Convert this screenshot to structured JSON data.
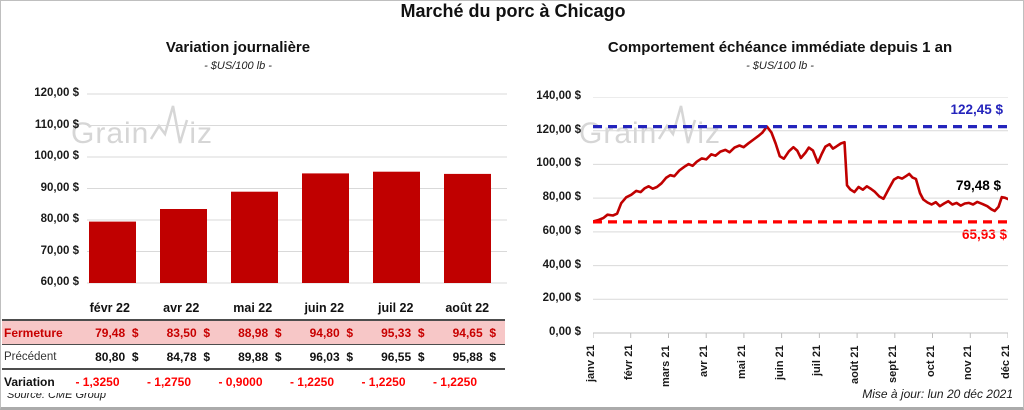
{
  "page": {
    "title": "Marché du porc à Chicago",
    "source_note": "Source: CME Group",
    "updated_note": "Mise à jour: lun 20 déc 2021",
    "watermark": {
      "part1": "Grain",
      "part2": "iz"
    }
  },
  "colors": {
    "bar": "#c00000",
    "line": "#c00000",
    "ref_high": "#2424bc",
    "ref_low": "#ff0000",
    "grid": "#d9d9d9",
    "axis": "#bfbfbf",
    "highlight_row_bg": "#f7c7c7"
  },
  "chart_data": [
    {
      "type": "bar",
      "title": "Variation  journalière",
      "subtitle": "- $US/100 lb -",
      "categories": [
        "févr 22",
        "avr 22",
        "mai 22",
        "juin 22",
        "juil 22",
        "août 22"
      ],
      "values": [
        79.48,
        83.5,
        88.98,
        94.8,
        95.33,
        94.65
      ],
      "ylim": [
        60,
        120
      ],
      "ytick_step": 10,
      "ytick_labels": [
        "60,00 $",
        "70,00 $",
        "80,00 $",
        "90,00 $",
        "100,00 $",
        "110,00 $",
        "120,00 $"
      ],
      "grid": true,
      "legend": "none"
    },
    {
      "type": "line",
      "title": "Comportement  échéance immédiate depuis 1 an",
      "subtitle": "- $US/100 lb -",
      "x_labels": [
        "janv 21",
        "févr 21",
        "mars 21",
        "avr 21",
        "mai 21",
        "juin 21",
        "juil 21",
        "août 21",
        "sept 21",
        "oct 21",
        "nov 21",
        "déc 21"
      ],
      "ylim": [
        0,
        140
      ],
      "ytick_step": 20,
      "ytick_labels": [
        "0,00 $",
        "20,00 $",
        "40,00 $",
        "60,00 $",
        "80,00 $",
        "100,00 $",
        "120,00 $",
        "140,00 $"
      ],
      "grid": true,
      "legend": "none",
      "reference_lines": [
        {
          "value": 122.45,
          "label": "122,45 $",
          "color": "#2424bc",
          "style": "dashed"
        },
        {
          "value": 65.93,
          "label": "65,93 $",
          "color": "#ff0000",
          "style": "dashed"
        }
      ],
      "end_label": {
        "value": 79.48,
        "label": "79,48 $",
        "color": "#000000"
      },
      "points": [
        [
          0.0,
          66.2
        ],
        [
          0.012,
          66.9
        ],
        [
          0.025,
          68.2
        ],
        [
          0.035,
          70.2
        ],
        [
          0.048,
          69.7
        ],
        [
          0.058,
          70.8
        ],
        [
          0.068,
          77.0
        ],
        [
          0.08,
          80.5
        ],
        [
          0.092,
          82.0
        ],
        [
          0.104,
          84.3
        ],
        [
          0.115,
          83.6
        ],
        [
          0.124,
          85.8
        ],
        [
          0.134,
          87.0
        ],
        [
          0.144,
          85.6
        ],
        [
          0.154,
          86.6
        ],
        [
          0.165,
          88.8
        ],
        [
          0.176,
          92.0
        ],
        [
          0.186,
          93.6
        ],
        [
          0.196,
          93.0
        ],
        [
          0.208,
          96.4
        ],
        [
          0.22,
          98.6
        ],
        [
          0.23,
          100.2
        ],
        [
          0.24,
          99.2
        ],
        [
          0.25,
          101.6
        ],
        [
          0.262,
          103.6
        ],
        [
          0.273,
          103.0
        ],
        [
          0.285,
          106.0
        ],
        [
          0.295,
          105.2
        ],
        [
          0.307,
          107.6
        ],
        [
          0.319,
          108.6
        ],
        [
          0.329,
          107.2
        ],
        [
          0.341,
          110.0
        ],
        [
          0.353,
          111.2
        ],
        [
          0.363,
          110.2
        ],
        [
          0.375,
          112.6
        ],
        [
          0.387,
          114.8
        ],
        [
          0.398,
          116.8
        ],
        [
          0.408,
          118.8
        ],
        [
          0.414,
          120.8
        ],
        [
          0.419,
          122.45
        ],
        [
          0.43,
          119.0
        ],
        [
          0.44,
          112.5
        ],
        [
          0.45,
          104.8
        ],
        [
          0.46,
          103.4
        ],
        [
          0.472,
          107.8
        ],
        [
          0.483,
          110.2
        ],
        [
          0.492,
          108.2
        ],
        [
          0.501,
          103.8
        ],
        [
          0.512,
          107.0
        ],
        [
          0.52,
          110.0
        ],
        [
          0.53,
          108.2
        ],
        [
          0.542,
          101.0
        ],
        [
          0.551,
          106.2
        ],
        [
          0.56,
          110.6
        ],
        [
          0.57,
          112.0
        ],
        [
          0.578,
          109.4
        ],
        [
          0.586,
          110.6
        ],
        [
          0.597,
          112.4
        ],
        [
          0.606,
          113.2
        ],
        [
          0.612,
          87.6
        ],
        [
          0.62,
          85.2
        ],
        [
          0.63,
          83.6
        ],
        [
          0.64,
          86.6
        ],
        [
          0.65,
          85.0
        ],
        [
          0.66,
          87.0
        ],
        [
          0.67,
          85.4
        ],
        [
          0.678,
          84.0
        ],
        [
          0.69,
          81.0
        ],
        [
          0.7,
          79.6
        ],
        [
          0.712,
          85.2
        ],
        [
          0.725,
          91.0
        ],
        [
          0.735,
          92.4
        ],
        [
          0.745,
          91.6
        ],
        [
          0.755,
          93.2
        ],
        [
          0.762,
          94.4
        ],
        [
          0.77,
          92.2
        ],
        [
          0.778,
          91.4
        ],
        [
          0.788,
          83.0
        ],
        [
          0.796,
          79.2
        ],
        [
          0.806,
          77.4
        ],
        [
          0.816,
          76.2
        ],
        [
          0.826,
          77.6
        ],
        [
          0.836,
          75.2
        ],
        [
          0.846,
          76.8
        ],
        [
          0.856,
          78.2
        ],
        [
          0.866,
          76.2
        ],
        [
          0.876,
          77.2
        ],
        [
          0.886,
          75.6
        ],
        [
          0.896,
          76.8
        ],
        [
          0.906,
          77.2
        ],
        [
          0.916,
          76.2
        ],
        [
          0.926,
          77.8
        ],
        [
          0.938,
          76.6
        ],
        [
          0.95,
          75.2
        ],
        [
          0.96,
          73.4
        ],
        [
          0.968,
          72.4
        ],
        [
          0.977,
          74.8
        ],
        [
          0.985,
          80.6
        ],
        [
          0.993,
          80.2
        ],
        [
          1.0,
          79.5
        ]
      ]
    }
  ],
  "table": {
    "columns": [
      "févr 22",
      "avr 22",
      "mai 22",
      "juin 22",
      "juil 22",
      "août 22"
    ],
    "rows": [
      {
        "label": "Fermeture",
        "highlight": true,
        "values": [
          "79,48  $",
          "83,50  $",
          "88,98  $",
          "94,80  $",
          "95,33  $",
          "94,65  $"
        ]
      },
      {
        "label": "Précédent",
        "highlight": false,
        "values": [
          "80,80  $",
          "84,78  $",
          "89,88  $",
          "96,03  $",
          "96,55  $",
          "95,88  $"
        ]
      },
      {
        "label": "Variation",
        "highlight": false,
        "values": [
          "- 1,3250",
          "- 1,2750",
          "- 0,9000",
          "- 1,2250",
          "- 1,2250",
          "- 1,2250"
        ]
      }
    ]
  }
}
